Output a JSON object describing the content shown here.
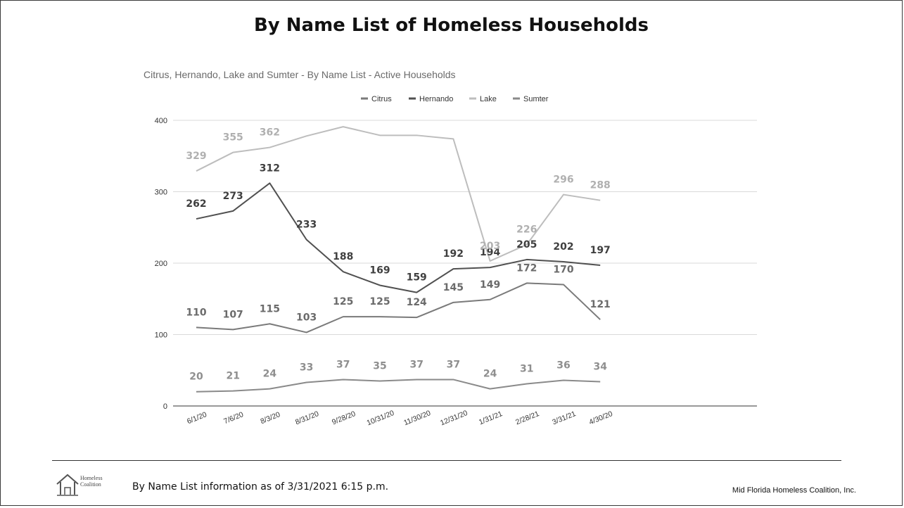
{
  "slide": {
    "title": "By Name List of Homeless Households",
    "footer_note": "By Name List information as of 3/31/2021 6:15 p.m.",
    "footer_org": "Mid Florida Homeless Coalition, Inc.",
    "logo_line1": "Homeless",
    "logo_line2": "Coalition"
  },
  "chart_data": {
    "type": "line",
    "title": "Citrus, Hernando, Lake and Sumter - By Name List - Active Households",
    "xlabel": "",
    "ylabel": "",
    "ylim": [
      0,
      400
    ],
    "yticks": [
      0,
      100,
      200,
      300,
      400
    ],
    "grid": true,
    "legend_position": "top",
    "categories": [
      "6/1/20",
      "7/6/20",
      "8/3/20",
      "8/31/20",
      "9/28/20",
      "10/31/20",
      "11/30/20",
      "12/31/20",
      "1/31/21",
      "2/28/21",
      "3/31/21",
      "4/30/20"
    ],
    "series": [
      {
        "name": "Citrus",
        "color": "#7a7a7a",
        "label_color": "#6b6b6b",
        "values": [
          110,
          107,
          115,
          103,
          125,
          125,
          124,
          145,
          149,
          172,
          170,
          121
        ]
      },
      {
        "name": "Hernando",
        "color": "#505050",
        "label_color": "#3f3f3f",
        "values": [
          262,
          273,
          312,
          233,
          188,
          169,
          159,
          192,
          194,
          205,
          202,
          197
        ]
      },
      {
        "name": "Lake",
        "color": "#bdbdbd",
        "label_color": "#b0b0b0",
        "values": [
          329,
          355,
          362,
          378,
          391,
          379,
          379,
          374,
          203,
          226,
          296,
          288
        ],
        "labeled": [
          true,
          true,
          true,
          false,
          false,
          false,
          false,
          false,
          true,
          true,
          true,
          true
        ]
      },
      {
        "name": "Sumter",
        "color": "#8a8a8a",
        "label_color": "#8f8f8f",
        "values": [
          20,
          21,
          24,
          33,
          37,
          35,
          37,
          37,
          24,
          31,
          36,
          34
        ]
      }
    ]
  }
}
